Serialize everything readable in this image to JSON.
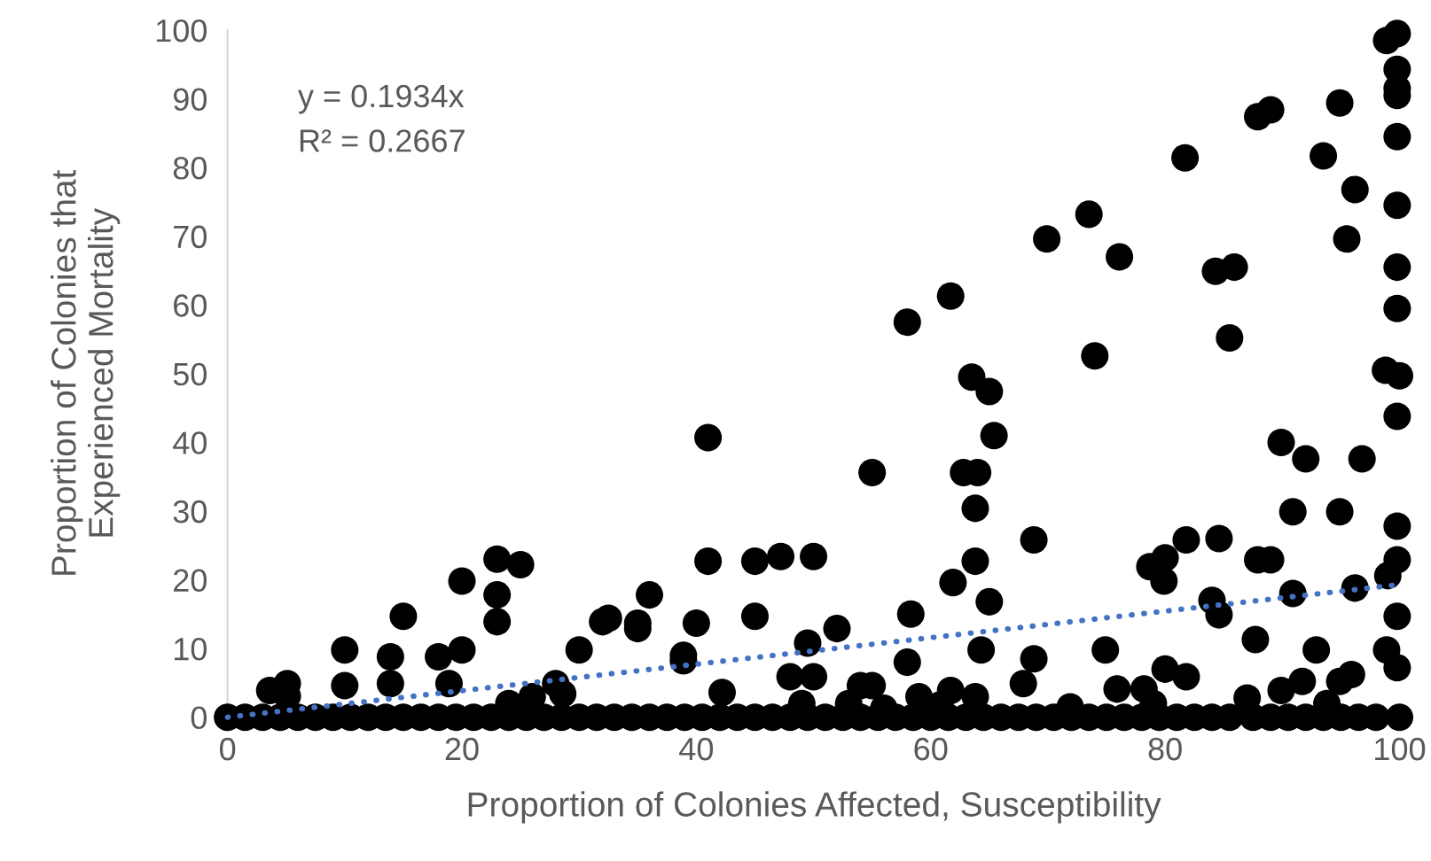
{
  "chart_data": {
    "type": "scatter",
    "xlabel": "Proportion of Colonies Affected, Susceptibility",
    "ylabel": "Proportion of Colonies that\nExperienced Mortality",
    "xlim": [
      0,
      100
    ],
    "ylim": [
      0,
      100
    ],
    "xticks": [
      0,
      20,
      40,
      60,
      80,
      100
    ],
    "yticks": [
      0,
      10,
      20,
      30,
      40,
      50,
      60,
      70,
      80,
      90,
      100
    ],
    "grid": false,
    "legend": false,
    "marker": "circle",
    "annotations": [
      "y = 0.1934x",
      "R² = 0.2667"
    ],
    "series": [
      {
        "color": "#000000",
        "x": [
          3.6,
          5.1,
          5.1,
          10,
          10,
          13.9,
          13.9,
          15,
          18,
          18.9,
          20,
          20,
          23,
          25,
          23,
          23,
          24,
          26,
          28,
          28.6,
          30,
          32,
          32.5,
          35,
          35,
          36,
          38.9,
          38.9,
          40,
          41,
          41,
          42.2,
          45,
          45,
          47.2,
          50,
          49.5,
          48,
          50,
          49,
          52,
          54,
          55,
          55,
          53,
          56,
          58,
          61.7,
          58.3,
          58,
          59,
          61.7,
          60.8,
          63.5,
          65,
          65.4,
          62.8,
          64,
          63.8,
          63.8,
          61.9,
          65,
          64.3,
          63.8,
          69.9,
          73.5,
          76.1,
          74,
          81.7,
          87.9,
          89,
          94.9,
          93.5,
          96.2,
          95.5,
          84.3,
          85.9,
          85.5,
          98.9,
          99.8,
          99.8,
          99.8,
          99.8,
          99.8,
          99.8,
          99.8,
          99.8,
          98.8,
          100,
          99.8,
          89.9,
          92,
          96.8,
          90.9,
          94.9,
          99.8,
          99.8,
          99,
          96.2,
          90.9,
          68.8,
          81.8,
          84.6,
          87.9,
          89,
          78.7,
          80,
          79.9,
          84,
          84.6,
          99.8,
          87.7,
          92.9,
          98.9,
          99.8,
          74.9,
          68.8,
          67.9,
          75.9,
          78.2,
          80,
          81.8,
          79,
          87,
          89.9,
          91.7,
          94.9,
          95.9,
          93.8,
          71.9,
          0,
          1.5,
          3,
          4.5,
          6,
          7.5,
          9,
          10.5,
          12,
          13.5,
          15,
          16.5,
          18,
          19.5,
          21,
          22.5,
          24,
          25.5,
          27,
          28.5,
          30,
          31.5,
          33,
          34.5,
          36,
          37.5,
          39,
          40.5,
          42,
          43.5,
          45,
          46.5,
          48,
          49.5,
          51,
          52.5,
          54,
          55.5,
          57,
          58.5,
          60,
          61.5,
          63,
          64.5,
          66,
          67.5,
          69,
          70.5,
          72,
          73.5,
          75,
          76.5,
          78,
          79.5,
          81,
          82.5,
          84,
          85.5,
          87.5,
          89,
          90.5,
          92,
          93.5,
          95,
          96.5,
          98,
          100
        ],
        "values": [
          3.9,
          4.9,
          3.1,
          9.8,
          4.6,
          8.8,
          4.9,
          14.7,
          8.8,
          4.9,
          19.8,
          9.8,
          23,
          22.2,
          17.8,
          13.9,
          2,
          3,
          4.9,
          3.4,
          9.8,
          13.9,
          14.4,
          13.7,
          12.9,
          17.8,
          9,
          8.2,
          13.7,
          40.7,
          22.7,
          3.6,
          22.7,
          14.7,
          23.4,
          23.4,
          10.8,
          5.9,
          5.9,
          2,
          12.9,
          4.6,
          4.6,
          35.6,
          2,
          1.3,
          57.5,
          61.3,
          15,
          8,
          3,
          3.9,
          1.8,
          49.5,
          47.4,
          41,
          35.6,
          35.6,
          30.4,
          22.7,
          19.6,
          16.8,
          9.8,
          3,
          69.6,
          73.2,
          67,
          52.6,
          81.4,
          87.4,
          88.4,
          89.4,
          81.7,
          76.8,
          69.6,
          64.9,
          65.5,
          55.2,
          98.5,
          99.5,
          94.3,
          91.5,
          90.5,
          84.5,
          74.5,
          65.5,
          59.5,
          50.5,
          49.7,
          43.8,
          40,
          37.6,
          37.6,
          29.9,
          29.9,
          27.8,
          22.9,
          20.6,
          18.8,
          18,
          25.8,
          25.8,
          26,
          22.9,
          22.9,
          21.9,
          23.2,
          19.8,
          17,
          14.9,
          14.7,
          11.3,
          9.8,
          9.8,
          7.2,
          9.8,
          8.5,
          4.9,
          4.1,
          4.1,
          7,
          5.9,
          2,
          2.8,
          3.9,
          5.2,
          5.2,
          6.2,
          2,
          1.5,
          0,
          0,
          0,
          0,
          0,
          0,
          0,
          0,
          0,
          0,
          0,
          0,
          0,
          0,
          0,
          0,
          0,
          0,
          0,
          0,
          0,
          0,
          0,
          0,
          0,
          0,
          0,
          0,
          0,
          0,
          0,
          0,
          0,
          0,
          0,
          0,
          0,
          0,
          0,
          0,
          0,
          0,
          0,
          0,
          0,
          0,
          0,
          0,
          0,
          0,
          0,
          0,
          0,
          0,
          0,
          0,
          0,
          0,
          0,
          0,
          0,
          0,
          0,
          0,
          0,
          0,
          0
        ]
      },
      {
        "type": "line",
        "color": "#4472c4",
        "line_style": "dotted",
        "marker": "none",
        "x": [
          0,
          100
        ],
        "values": [
          0,
          19.3
        ]
      }
    ]
  }
}
